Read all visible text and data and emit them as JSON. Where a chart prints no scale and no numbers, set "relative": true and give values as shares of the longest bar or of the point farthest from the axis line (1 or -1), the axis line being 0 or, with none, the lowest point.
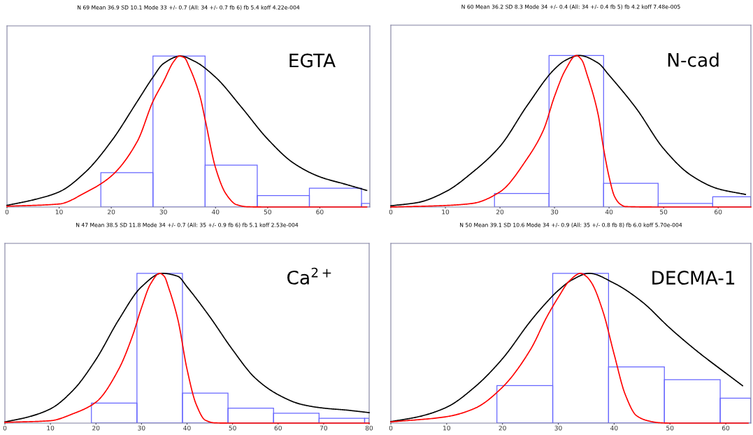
{
  "chart_data": [
    {
      "type": "histogram",
      "title": "N 69 Mean 36.9 SD 10.1 Mode 33 +/- 0.7 (All: 34 +/- 0.7 fb 6) fb 5.4 koff 4.22e-004",
      "annotations": [
        "EGTA"
      ],
      "relative": true,
      "xlim": [
        0,
        69.6
      ],
      "xticks": [
        0,
        10,
        20,
        30,
        40,
        50,
        60
      ],
      "bins": [
        18,
        28,
        38,
        48,
        58,
        68,
        69.6
      ],
      "values": [
        0.228,
        1,
        0.277,
        0.076,
        0.125,
        0.024
      ],
      "color": "#6666ff",
      "series": [
        {
          "type": "line",
          "color": "#000000",
          "x": [
            0,
            5,
            10,
            15,
            20,
            25,
            28,
            30,
            33.3,
            36,
            40,
            45,
            50,
            55,
            60,
            65,
            69
          ],
          "values": [
            0.011,
            0.047,
            0.1,
            0.23,
            0.435,
            0.7,
            0.86,
            0.95,
            1,
            0.965,
            0.86,
            0.66,
            0.45,
            0.29,
            0.2,
            0.15,
            0.11
          ]
        },
        {
          "type": "line",
          "color": "#ff0000",
          "x": [
            0,
            10,
            15,
            20,
            25,
            28,
            30,
            32,
            33,
            34,
            35,
            37,
            38,
            40,
            42,
            44,
            46,
            50,
            69
          ],
          "values": [
            0.005,
            0.02,
            0.095,
            0.205,
            0.435,
            0.7,
            0.83,
            0.965,
            1,
            0.99,
            0.925,
            0.735,
            0.58,
            0.26,
            0.087,
            0.016,
            0.002,
            0,
            0
          ]
        }
      ]
    },
    {
      "type": "histogram",
      "title": "N 60 Mean 36.2 SD 8.3 Mode 34 +/- 0.4 (All: 34 +/- 0.4 fb 5) fb 4.2 koff 7.48e-005",
      "annotations": [
        "N-cad"
      ],
      "relative": true,
      "xlim": [
        0,
        66
      ],
      "xticks": [
        0,
        10,
        20,
        30,
        40,
        50,
        60
      ],
      "bins": [
        19,
        29,
        39,
        49,
        59,
        66
      ],
      "values": [
        0.09,
        1,
        0.156,
        0.024,
        0.068
      ],
      "color": "#6666ff",
      "series": [
        {
          "type": "line",
          "color": "#000000",
          "x": [
            0,
            5,
            10,
            15,
            20,
            25,
            30,
            32,
            34.5,
            38,
            40,
            45,
            50,
            55,
            60,
            65
          ],
          "values": [
            0.008,
            0.03,
            0.1,
            0.23,
            0.4,
            0.67,
            0.91,
            0.968,
            1,
            0.95,
            0.87,
            0.65,
            0.385,
            0.21,
            0.12,
            0.083
          ]
        },
        {
          "type": "line",
          "color": "#ff0000",
          "x": [
            0,
            10,
            15,
            20,
            25,
            28,
            30,
            32,
            34,
            35,
            36,
            38,
            39,
            40,
            41,
            42,
            43,
            50,
            66
          ],
          "values": [
            0,
            0.01,
            0.024,
            0.1,
            0.32,
            0.51,
            0.73,
            0.905,
            1,
            0.97,
            0.87,
            0.61,
            0.385,
            0.2,
            0.07,
            0.02,
            0.003,
            0,
            0
          ]
        }
      ]
    },
    {
      "type": "histogram",
      "title": "N 47 Mean 38.5 SD 11.8 Mode 34 +/- 0.7 (All: 35 +/- 0.9 fb 6) fb 5.1 koff 2.53e-004",
      "annotations": [
        "Ca$^{2+}$"
      ],
      "relative": true,
      "xlim": [
        0,
        80
      ],
      "xticks": [
        0,
        10,
        20,
        30,
        40,
        50,
        60,
        70,
        80
      ],
      "bins": [
        19,
        29,
        39,
        49,
        59,
        69,
        79,
        80
      ],
      "values": [
        0.134,
        1,
        0.2,
        0.1,
        0.066,
        0.032,
        0.032
      ],
      "color": "#6666ff",
      "series": [
        {
          "type": "line",
          "color": "#000000",
          "x": [
            0,
            5,
            10,
            15,
            20,
            25,
            30,
            34.5,
            38,
            40,
            45,
            50,
            55,
            60,
            65,
            70,
            75,
            80
          ],
          "values": [
            0.008,
            0.04,
            0.095,
            0.22,
            0.425,
            0.69,
            0.91,
            1,
            0.98,
            0.91,
            0.71,
            0.49,
            0.3,
            0.19,
            0.126,
            0.1,
            0.087,
            0.07
          ]
        },
        {
          "type": "line",
          "color": "#ff0000",
          "x": [
            0,
            10,
            15,
            20,
            25,
            28,
            30,
            32,
            34,
            35,
            36,
            38,
            40,
            42,
            44,
            46,
            50,
            80
          ],
          "values": [
            0.005,
            0.016,
            0.063,
            0.14,
            0.36,
            0.58,
            0.77,
            0.93,
            1,
            0.98,
            0.9,
            0.69,
            0.36,
            0.126,
            0.02,
            0.002,
            0,
            0
          ]
        }
      ]
    },
    {
      "type": "histogram",
      "title": "N 50 Mean 39.1 SD 10.6 Mode 34 +/- 0.9 (All: 35 +/- 0.8 fb 8) fb 6.0 koff 5.70e-004",
      "annotations": [
        "DECMA-1"
      ],
      "relative": true,
      "xlim": [
        0,
        64.5
      ],
      "xticks": [
        0,
        10,
        20,
        30,
        40,
        50,
        60
      ],
      "bins": [
        19,
        29,
        39,
        49,
        59,
        64.5
      ],
      "values": [
        0.25,
        1,
        0.375,
        0.29,
        0.166
      ],
      "color": "#6666ff",
      "series": [
        {
          "type": "line",
          "color": "#000000",
          "x": [
            0,
            5,
            10,
            15,
            20,
            25,
            27.5,
            30,
            32.5,
            35.5,
            40,
            45,
            50,
            55,
            60,
            63
          ],
          "values": [
            0.01,
            0.043,
            0.106,
            0.24,
            0.43,
            0.68,
            0.79,
            0.886,
            0.957,
            1,
            0.934,
            0.81,
            0.634,
            0.476,
            0.334,
            0.25
          ]
        },
        {
          "type": "line",
          "color": "#ff0000",
          "x": [
            0,
            10,
            15,
            20,
            25,
            28,
            30,
            32,
            34,
            35,
            36,
            38,
            40,
            42,
            44,
            46,
            48,
            50,
            64
          ],
          "values": [
            0.008,
            0.043,
            0.098,
            0.24,
            0.49,
            0.713,
            0.84,
            0.95,
            1,
            0.98,
            0.934,
            0.745,
            0.46,
            0.19,
            0.05,
            0.016,
            0.003,
            0,
            0
          ]
        }
      ]
    }
  ]
}
